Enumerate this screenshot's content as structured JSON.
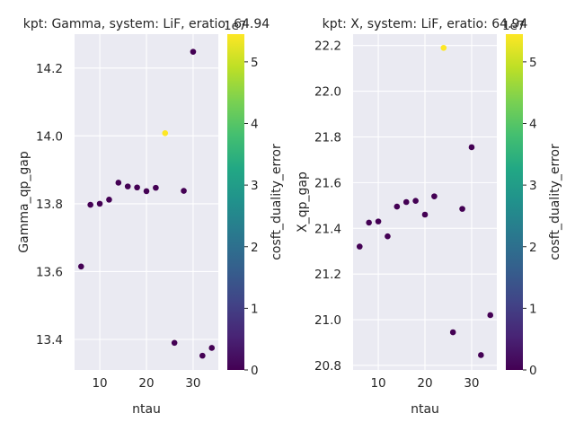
{
  "chart_data": [
    {
      "type": "scatter",
      "title": "kpt: Gamma, system: LiF, eratio: 64.94",
      "xlabel": "ntau",
      "ylabel": "Gamma_qp_gap",
      "xlim": [
        4.6,
        35.4
      ],
      "ylim": [
        13.31,
        14.3
      ],
      "xticks": [
        10,
        20,
        30
      ],
      "yticks": [
        13.4,
        13.6,
        13.8,
        14.0,
        14.2
      ],
      "ytick_labels": [
        "13.4",
        "13.6",
        "13.8",
        "14.0",
        "14.2"
      ],
      "grid": true,
      "x": [
        6,
        8,
        10,
        12,
        14,
        16,
        18,
        20,
        22,
        24,
        26,
        28,
        30,
        32,
        34
      ],
      "y": [
        13.615,
        13.797,
        13.8,
        13.812,
        13.862,
        13.851,
        13.848,
        13.837,
        13.847,
        14.008,
        13.39,
        13.838,
        14.248,
        13.352,
        13.375
      ],
      "color_values": [
        0.0,
        0.0,
        0.0,
        0.0,
        0.0,
        0.0,
        0.0,
        0.0,
        0.0,
        5.4,
        0.0,
        0.0,
        0.0,
        0.0,
        0.0
      ],
      "colorbar": {
        "label": "cosft_duality_error",
        "range": [
          0,
          5.45
        ],
        "ticks": [
          0,
          1,
          2,
          3,
          4,
          5
        ],
        "tick_labels": [
          "0",
          "1",
          "2",
          "3",
          "4",
          "5"
        ],
        "offset_label": "1e7",
        "colormap": "viridis"
      }
    },
    {
      "type": "scatter",
      "title": "kpt: X, system: LiF, eratio: 64.94",
      "xlabel": "ntau",
      "ylabel": "X_qp_gap",
      "xlim": [
        4.6,
        35.4
      ],
      "ylim": [
        20.78,
        22.25
      ],
      "xticks": [
        10,
        20,
        30
      ],
      "yticks": [
        20.8,
        21.0,
        21.2,
        21.4,
        21.6,
        21.8,
        22.0,
        22.2
      ],
      "ytick_labels": [
        "20.8",
        "21.0",
        "21.2",
        "21.4",
        "21.6",
        "21.8",
        "22.0",
        "22.2"
      ],
      "grid": true,
      "x": [
        6,
        8,
        10,
        12,
        14,
        16,
        18,
        20,
        22,
        24,
        26,
        28,
        30,
        32,
        34
      ],
      "y": [
        21.32,
        21.425,
        21.43,
        21.365,
        21.495,
        21.515,
        21.52,
        21.46,
        21.54,
        22.19,
        20.945,
        21.485,
        21.755,
        20.845,
        21.02
      ],
      "color_values": [
        0.0,
        0.0,
        0.0,
        0.0,
        0.0,
        0.0,
        0.0,
        0.0,
        0.0,
        5.4,
        0.0,
        0.0,
        0.0,
        0.0,
        0.0
      ],
      "colorbar": {
        "label": "cosft_duality_error",
        "range": [
          0,
          5.45
        ],
        "ticks": [
          0,
          1,
          2,
          3,
          4,
          5
        ],
        "tick_labels": [
          "0",
          "1",
          "2",
          "3",
          "4",
          "5"
        ],
        "offset_label": "1e7",
        "colormap": "viridis"
      }
    }
  ]
}
